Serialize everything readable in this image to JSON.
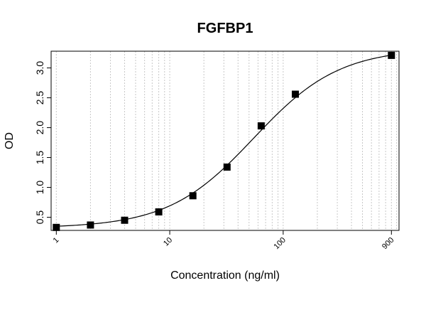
{
  "chart_data": {
    "type": "scatter",
    "title": "FGFBP1",
    "xlabel": "Concentration (ng/ml)",
    "ylabel": "OD",
    "x_scale": "log",
    "xlim": [
      0.9,
      1050
    ],
    "ylim": [
      0.28,
      3.28
    ],
    "grid": true,
    "x_ticks": [
      1,
      10,
      100,
      900
    ],
    "x_tick_labels": [
      "1",
      "10",
      "100",
      "900"
    ],
    "y_ticks": [
      0.5,
      1.0,
      1.5,
      2.0,
      2.5,
      3.0
    ],
    "y_tick_labels": [
      "0.5",
      "1.0",
      "1.5",
      "2.0",
      "2.5",
      "3.0"
    ],
    "series": [
      {
        "marker": "square",
        "color": "#000000",
        "x": [
          1,
          2,
          4,
          8,
          16,
          32,
          64,
          128,
          900
        ],
        "y": [
          0.33,
          0.37,
          0.45,
          0.59,
          0.86,
          1.34,
          2.03,
          2.56,
          3.21
        ]
      }
    ],
    "fit_curve": {
      "type": "4PL",
      "bottom": 0.32,
      "top": 3.33,
      "ec50": 55,
      "hill": 1.15,
      "color": "#000000"
    }
  }
}
